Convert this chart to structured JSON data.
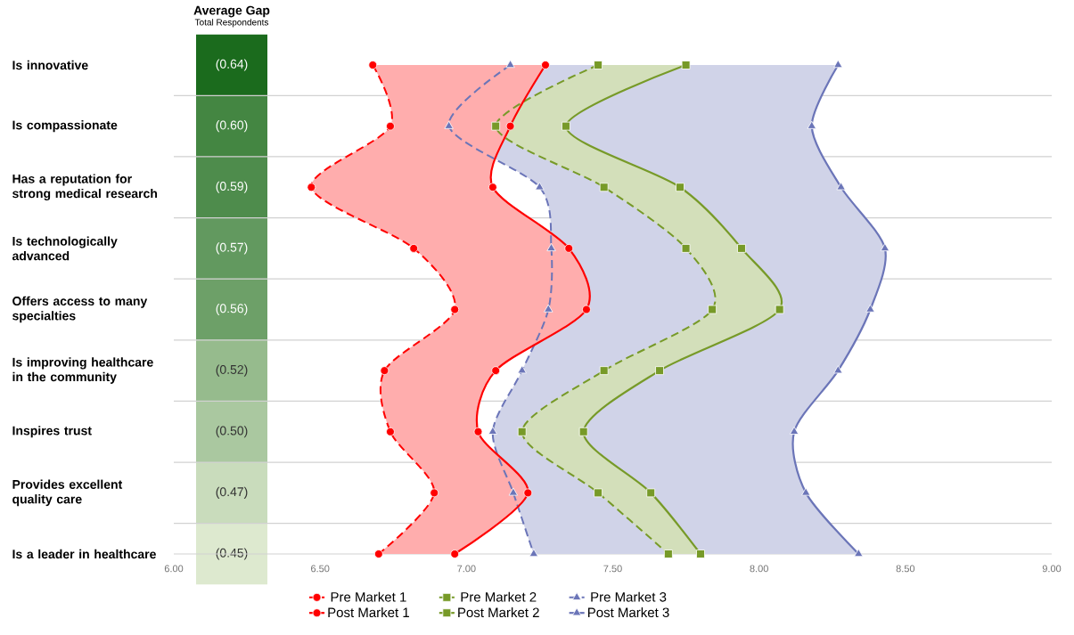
{
  "chart_data": [
    {
      "type": "heatmap",
      "title": "Average Gap",
      "subtitle": "Total Respondents",
      "categories": [
        null
      ],
      "y_categories": [
        "Is innovative",
        "Is compassionate",
        "Has a reputation for strong medical research",
        "Is technologically advanced",
        "Offers access to many specialties",
        "Is improving healthcare in the community",
        "Inspires trust",
        "Provides excellent quality care",
        "Is a leader in healthcare"
      ],
      "cells": [
        [
          -0.64
        ],
        [
          -0.6
        ],
        [
          -0.59
        ],
        [
          -0.57
        ],
        [
          -0.56
        ],
        [
          -0.52
        ],
        [
          -0.5
        ],
        [
          -0.47
        ],
        [
          -0.45
        ]
      ],
      "cell_labels": [
        [
          "(0.64)"
        ],
        [
          "(0.60)"
        ],
        [
          "(0.59)"
        ],
        [
          "(0.57)"
        ],
        [
          "(0.56)"
        ],
        [
          "(0.52)"
        ],
        [
          "(0.50)"
        ],
        [
          "(0.47)"
        ],
        [
          "(0.45)"
        ]
      ],
      "tick_labels": "y"
    },
    {
      "type": "line",
      "orientation": "horizontal",
      "categories": [
        null,
        null,
        null,
        null,
        null,
        null,
        null,
        null,
        null
      ],
      "xlim": [
        6,
        9
      ],
      "xticks": [
        {
          "value": 6,
          "label": "6.00"
        },
        {
          "value": 6.5,
          "label": "6.50"
        },
        {
          "value": 7,
          "label": "7.00"
        },
        {
          "value": 7.5,
          "label": "7.50"
        },
        {
          "value": 8,
          "label": "8.00"
        },
        {
          "value": 8.5,
          "label": "8.50"
        },
        {
          "value": 9,
          "label": "9.00"
        }
      ],
      "tick_labels": "x",
      "grid": "y",
      "legend": "bottom",
      "series": [
        {
          "name": "Pre Market 1",
          "color": "#ff0000",
          "marker": "circle",
          "line_style": "dashed",
          "values": [
            6.68,
            6.74,
            6.47,
            6.82,
            6.96,
            6.72,
            6.74,
            6.89,
            6.7
          ]
        },
        {
          "name": "Pre Market 2",
          "color": "#779a28",
          "marker": "square",
          "line_style": "dashed",
          "values": [
            7.45,
            7.1,
            7.47,
            7.75,
            7.84,
            7.47,
            7.19,
            7.45,
            7.69
          ]
        },
        {
          "name": "Pre Market 3",
          "color": "#6b75b8",
          "marker": "triangle",
          "line_style": "dashed",
          "values": [
            7.15,
            6.94,
            7.25,
            7.29,
            7.28,
            7.19,
            7.09,
            7.16,
            7.23
          ]
        },
        {
          "name": "Post Market 1",
          "color": "#ff0000",
          "marker": "circle",
          "line_style": "solid",
          "values": [
            7.27,
            7.15,
            7.09,
            7.35,
            7.41,
            7.1,
            7.04,
            7.21,
            6.96
          ],
          "lower": [
            6.68,
            6.74,
            6.47,
            6.82,
            6.96,
            6.72,
            6.74,
            6.89,
            6.7
          ],
          "upper": [
            7.27,
            7.15,
            7.09,
            7.35,
            7.41,
            7.1,
            7.04,
            7.21,
            6.96
          ]
        },
        {
          "name": "Post Market 2",
          "color": "#779a28",
          "marker": "square",
          "line_style": "solid",
          "values": [
            7.75,
            7.34,
            7.73,
            7.94,
            8.07,
            7.66,
            7.4,
            7.63,
            7.8
          ],
          "lower": [
            7.45,
            7.1,
            7.47,
            7.75,
            7.84,
            7.47,
            7.19,
            7.45,
            7.69
          ],
          "upper": [
            7.75,
            7.34,
            7.73,
            7.94,
            8.07,
            7.66,
            7.4,
            7.63,
            7.8
          ]
        },
        {
          "name": "Post Market 3",
          "color": "#6b75b8",
          "marker": "triangle",
          "line_style": "solid",
          "values": [
            8.27,
            8.18,
            8.28,
            8.43,
            8.38,
            8.27,
            8.12,
            8.16,
            8.34
          ],
          "lower": [
            7.15,
            6.94,
            7.25,
            7.29,
            7.28,
            7.19,
            7.09,
            7.16,
            7.23
          ],
          "upper": [
            8.27,
            8.18,
            8.28,
            8.43,
            8.38,
            8.27,
            8.12,
            8.16,
            8.34
          ]
        }
      ]
    }
  ]
}
